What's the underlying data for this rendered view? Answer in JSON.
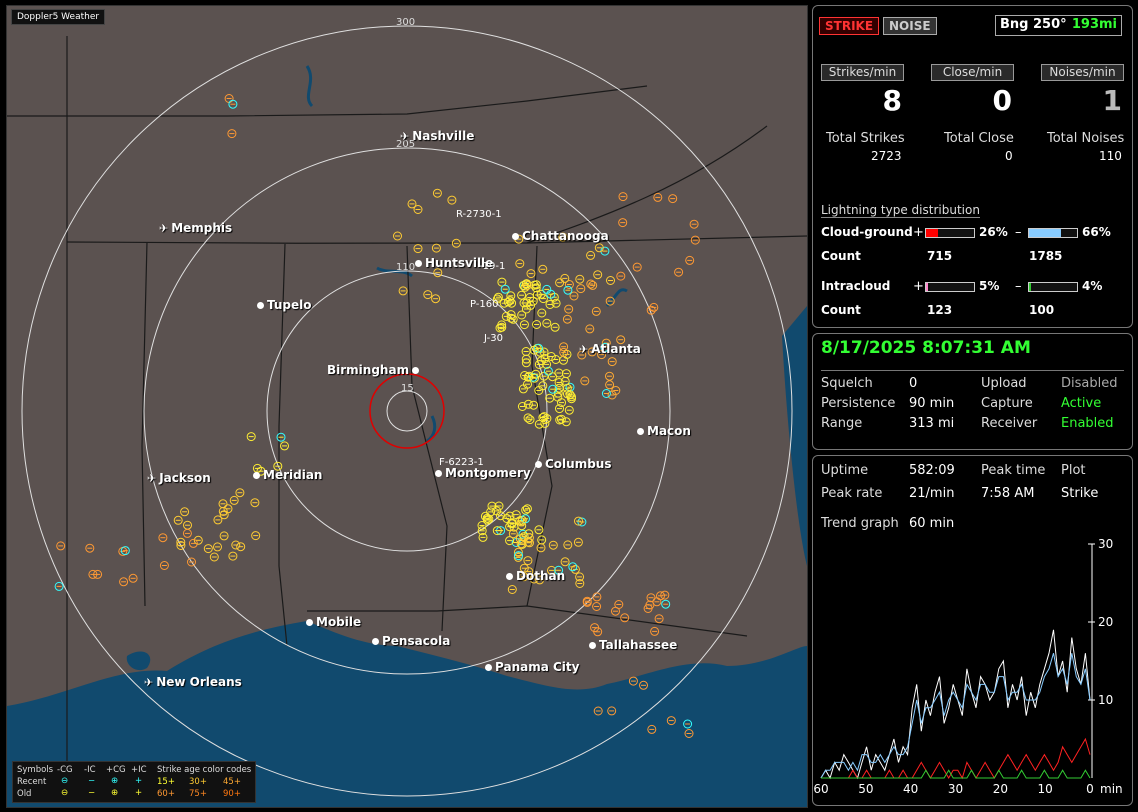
{
  "app": {
    "title": "Doppler5 Weather"
  },
  "map": {
    "range_labels": [
      "300",
      "205",
      "110",
      "15"
    ],
    "cities": [
      {
        "name": "Nashville",
        "icon": "airport"
      },
      {
        "name": "Memphis",
        "icon": "airport"
      },
      {
        "name": "Chattanooga",
        "icon": "dot"
      },
      {
        "name": "Huntsville",
        "icon": "dot"
      },
      {
        "name": "Tupelo",
        "icon": "dot"
      },
      {
        "name": "Atlanta",
        "icon": "airport"
      },
      {
        "name": "Birmingham",
        "icon": "dot"
      },
      {
        "name": "Macon",
        "icon": "dot"
      },
      {
        "name": "Jackson",
        "icon": "airport"
      },
      {
        "name": "Meridian",
        "icon": "dot"
      },
      {
        "name": "Montgomery",
        "icon": "dot"
      },
      {
        "name": "Columbus",
        "icon": "dot"
      },
      {
        "name": "Dothan",
        "icon": "dot"
      },
      {
        "name": "Mobile",
        "icon": "dot"
      },
      {
        "name": "Pensacola",
        "icon": "dot"
      },
      {
        "name": "Tallahassee",
        "icon": "dot"
      },
      {
        "name": "Panama City",
        "icon": "dot"
      },
      {
        "name": "New Orleans",
        "icon": "airport"
      }
    ],
    "flash_labels": [
      "R-2730-1",
      "-19-1",
      "P-160",
      "J-30",
      "F-6223-1"
    ]
  },
  "legend": {
    "symbols_label": "Symbols",
    "col_cg_neg": "-CG",
    "col_ic_neg": "-IC",
    "col_cg_pos": "+CG",
    "col_ic_pos": "+IC",
    "age_title": "Strike age color codes",
    "recent_label": "Recent",
    "old_label": "Old",
    "recent_ages": [
      "15+",
      "30+",
      "45+"
    ],
    "old_ages": [
      "60+",
      "75+",
      "90+"
    ]
  },
  "status": {
    "strike_button": "STRIKE",
    "noise_button": "NOISE",
    "bearing": "Bng 250°",
    "distance": "193mi"
  },
  "rates": {
    "strikes_label": "Strikes/min",
    "close_label": "Close/min",
    "noises_label": "Noises/min",
    "strikes_value": "8",
    "close_value": "0",
    "noises_value": "1"
  },
  "totals": {
    "strikes_label": "Total Strikes",
    "close_label": "Total Close",
    "noises_label": "Total Noises",
    "strikes_value": "2723",
    "close_value": "0",
    "noises_value": "110"
  },
  "distribution": {
    "title": "Lightning type distribution",
    "cg_label": "Cloud-ground",
    "ic_label": "Intracloud",
    "count_label": "Count",
    "plus_sign": "+",
    "minus_sign": "–",
    "cg_pos_pct": "26%",
    "cg_neg_pct": "66%",
    "cg_pos_count": "715",
    "cg_neg_count": "1785",
    "ic_pos_pct": "5%",
    "ic_neg_pct": "4%",
    "ic_pos_count": "123",
    "ic_neg_count": "100",
    "cg_pos_fraction": 0.26,
    "cg_neg_fraction": 0.66,
    "ic_pos_fraction": 0.05,
    "ic_neg_fraction": 0.04,
    "colors": {
      "cg_pos": "#ff0000",
      "cg_neg": "#88ccff",
      "ic_pos": "#ff88cc",
      "ic_neg": "#33cc33"
    }
  },
  "settings": {
    "datetime": "8/17/2025 8:07:31 AM",
    "squelch_label": "Squelch",
    "squelch_value": "0",
    "persistence_label": "Persistence",
    "persistence_value": "90 min",
    "range_label": "Range",
    "range_value": "313 mi",
    "upload_label": "Upload",
    "upload_value": "Disabled",
    "capture_label": "Capture",
    "capture_value": "Active",
    "receiver_label": "Receiver",
    "receiver_value": "Enabled"
  },
  "stats": {
    "uptime_label": "Uptime",
    "uptime_value": "582:09",
    "peak_time_label": "Peak time",
    "peak_time_value": "7:58 AM",
    "peak_rate_label": "Peak rate",
    "peak_rate_value": "21/min",
    "plot_label": "Plot",
    "plot_value": "Strike",
    "trend_label": "Trend graph",
    "trend_value": "60 min"
  },
  "chart_data": {
    "type": "line",
    "x_ticks": [
      "60",
      "50",
      "40",
      "30",
      "20",
      "10",
      "0"
    ],
    "x_unit": "min",
    "y_ticks": [
      "30",
      "20",
      "10"
    ],
    "ylim": [
      0,
      30
    ],
    "xlim": [
      60,
      0
    ],
    "series": [
      {
        "color": "#ffffff",
        "values": [
          0,
          1,
          0,
          2,
          1,
          3,
          2,
          1,
          0,
          2,
          4,
          1,
          3,
          2,
          1,
          3,
          5,
          2,
          4,
          3,
          9,
          12,
          6,
          10,
          8,
          11,
          13,
          7,
          9,
          12,
          10,
          8,
          14,
          11,
          9,
          13,
          12,
          10,
          11,
          14,
          15,
          9,
          12,
          10,
          13,
          8,
          11,
          9,
          12,
          14,
          16,
          19,
          13,
          15,
          11,
          18,
          14,
          12,
          16,
          10
        ]
      },
      {
        "color": "#88ccff",
        "values": [
          0,
          1,
          1,
          2,
          2,
          2,
          1,
          2,
          1,
          3,
          3,
          2,
          2,
          3,
          2,
          3,
          4,
          3,
          3,
          4,
          7,
          10,
          7,
          9,
          9,
          10,
          11,
          8,
          10,
          11,
          10,
          9,
          12,
          11,
          10,
          12,
          12,
          11,
          11,
          13,
          13,
          10,
          11,
          11,
          12,
          10,
          10,
          10,
          11,
          13,
          14,
          16,
          13,
          14,
          12,
          16,
          13,
          12,
          14,
          10
        ]
      },
      {
        "color": "#ff2222",
        "values": [
          0,
          0,
          0,
          0,
          0,
          0,
          0,
          1,
          0,
          0,
          1,
          0,
          0,
          0,
          0,
          1,
          0,
          0,
          1,
          0,
          0,
          1,
          2,
          1,
          0,
          1,
          2,
          1,
          0,
          1,
          1,
          0,
          2,
          1,
          0,
          1,
          2,
          1,
          0,
          1,
          2,
          3,
          2,
          1,
          2,
          3,
          2,
          1,
          2,
          3,
          2,
          1,
          2,
          4,
          3,
          2,
          3,
          4,
          5,
          3
        ]
      },
      {
        "color": "#33cc33",
        "values": [
          0,
          0,
          0,
          0,
          0,
          0,
          0,
          0,
          0,
          0,
          0,
          0,
          0,
          0,
          0,
          0,
          0,
          0,
          0,
          0,
          0,
          0,
          0,
          1,
          0,
          0,
          0,
          0,
          1,
          0,
          0,
          0,
          0,
          1,
          0,
          0,
          0,
          0,
          0,
          1,
          0,
          0,
          0,
          0,
          1,
          0,
          0,
          0,
          0,
          1,
          0,
          0,
          0,
          1,
          0,
          0,
          0,
          0,
          1,
          0
        ]
      }
    ]
  }
}
